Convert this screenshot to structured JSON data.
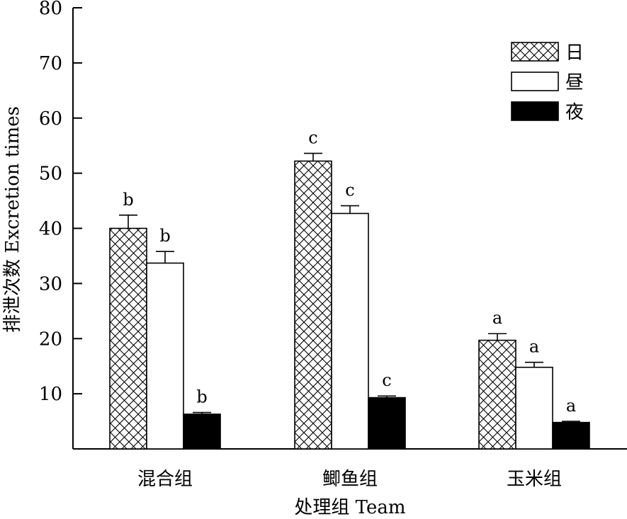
{
  "chart_data": {
    "type": "bar",
    "categories": [
      "混合组",
      "鲫鱼组",
      "玉米组"
    ],
    "series": [
      {
        "name": "日",
        "values": [
          40.0,
          52.2,
          19.7
        ],
        "errors": [
          2.4,
          1.4,
          1.2
        ],
        "letters": [
          "b",
          "c",
          "a"
        ],
        "pattern": "crosshatch"
      },
      {
        "name": "昼",
        "values": [
          33.7,
          42.7,
          14.8
        ],
        "errors": [
          2.1,
          1.4,
          0.9
        ],
        "letters": [
          "b",
          "c",
          "a"
        ],
        "pattern": "white"
      },
      {
        "name": "夜",
        "values": [
          6.3,
          9.3,
          4.8
        ],
        "errors": [
          0.3,
          0.3,
          0.2
        ],
        "letters": [
          "b",
          "c",
          "a"
        ],
        "pattern": "black"
      }
    ],
    "xlabel": "处理组 Team",
    "ylabel": "排泄次数 Excretion times",
    "ylim": [
      0,
      80
    ],
    "yticks": [
      10,
      20,
      30,
      40,
      50,
      60,
      70,
      80
    ],
    "legend_position": "top-right",
    "grid": false
  }
}
